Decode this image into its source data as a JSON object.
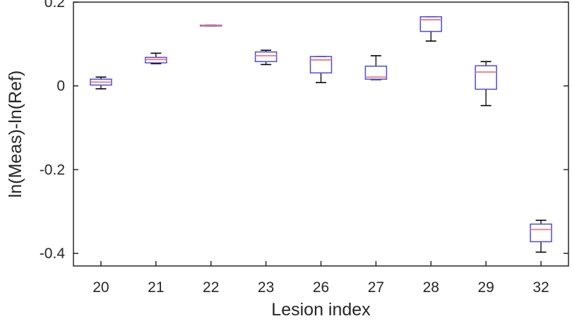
{
  "chart_data": {
    "type": "boxplot",
    "xlabel": "Lesion index",
    "ylabel": "ln(Meas)-ln(Ref)",
    "ylim": [
      -0.43,
      0.2
    ],
    "yticks": [
      0.2,
      0,
      -0.2,
      -0.4
    ],
    "ytick_labels": [
      "0.2",
      "0",
      "-0.2",
      "-0.4"
    ],
    "categories": [
      "20",
      "21",
      "22",
      "23",
      "26",
      "27",
      "28",
      "29",
      "32"
    ],
    "boxes": [
      {
        "whisker_low": -0.007,
        "q1": 0.002,
        "median": 0.009,
        "q3": 0.016,
        "whisker_high": 0.021
      },
      {
        "whisker_low": 0.053,
        "q1": 0.055,
        "median": 0.063,
        "q3": 0.068,
        "whisker_high": 0.078
      },
      {
        "whisker_low": 0.143,
        "q1": 0.143,
        "median": 0.144,
        "q3": 0.145,
        "whisker_high": 0.145
      },
      {
        "whisker_low": 0.051,
        "q1": 0.058,
        "median": 0.072,
        "q3": 0.081,
        "whisker_high": 0.085
      },
      {
        "whisker_low": 0.008,
        "q1": 0.031,
        "median": 0.062,
        "q3": 0.07,
        "whisker_high": 0.07
      },
      {
        "whisker_low": 0.015,
        "q1": 0.016,
        "median": 0.021,
        "q3": 0.047,
        "whisker_high": 0.072
      },
      {
        "whisker_low": 0.107,
        "q1": 0.13,
        "median": 0.158,
        "q3": 0.165,
        "whisker_high": 0.165
      },
      {
        "whisker_low": -0.047,
        "q1": -0.008,
        "median": 0.033,
        "q3": 0.048,
        "whisker_high": 0.058
      },
      {
        "whisker_low": -0.397,
        "q1": -0.372,
        "median": -0.343,
        "q3": -0.33,
        "whisker_high": -0.321
      }
    ],
    "grid": false,
    "colors": {
      "box": "#4a4ae6",
      "median": "#f07878",
      "whisker": "#000000",
      "axis": "#262626"
    }
  }
}
